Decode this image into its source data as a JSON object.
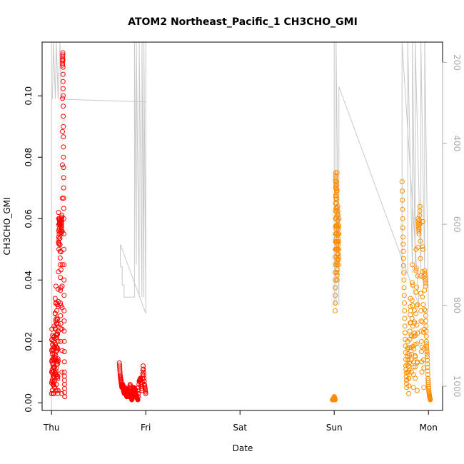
{
  "chart_data": {
    "type": "scatter",
    "title": "ATOM2 Northeast_Pacific_1 CH3CHO_GMI",
    "xlabel": "Date",
    "ylabel": "CH3CHO_GMI",
    "x_ticks": [
      "Thu",
      "Fri",
      "Sat",
      "Sun",
      "Mon"
    ],
    "y_ticks": [
      "0.00",
      "0.02",
      "0.04",
      "0.06",
      "0.08",
      "0.10"
    ],
    "y_range": [
      -0.0025,
      0.1175
    ],
    "y2_ticks": [
      "200",
      "400",
      "600",
      "800",
      "1000"
    ],
    "y2_range": [
      1060,
      150
    ],
    "y2_reversed": true,
    "x_range_days": [
      -0.1,
      4.15
    ],
    "series_colors": {
      "red_points": "#ff0000",
      "orange_points": "#ff8c00",
      "pressure_line": "#c8c8c8"
    },
    "red_segments": [
      {
        "x0": 0.0,
        "x1": 0.035,
        "values": [
          0.003,
          0.024,
          0.004,
          0.022,
          0.003,
          0.02,
          0.003,
          0.025,
          0.005,
          0.018
        ]
      },
      {
        "x0": 0.035,
        "x1": 0.07,
        "values": [
          0.005,
          0.034,
          0.004,
          0.038,
          0.006,
          0.03,
          0.004,
          0.032,
          0.003,
          0.037
        ]
      },
      {
        "x0": 0.07,
        "x1": 0.11,
        "values": [
          0.004,
          0.062,
          0.05,
          0.06,
          0.058,
          0.045,
          0.02,
          0.055,
          0.058,
          0.061
        ]
      },
      {
        "x0": 0.11,
        "x1": 0.14,
        "values": [
          0.003,
          0.045,
          0.11,
          0.114,
          0.1,
          0.08,
          0.06,
          0.03,
          0.01,
          0.002
        ]
      },
      {
        "x0": 0.72,
        "x1": 0.79,
        "values": [
          0.013,
          0.009,
          0.007,
          0.005,
          0.006,
          0.004,
          0.003,
          0.005,
          0.003
        ]
      },
      {
        "x0": 0.79,
        "x1": 0.86,
        "values": [
          0.003,
          0.002,
          0.004,
          0.002,
          0.003,
          0.006,
          0.003,
          0.001,
          0.002
        ]
      },
      {
        "x0": 0.86,
        "x1": 1.0,
        "values": [
          0.002,
          0.005,
          0.004,
          0.002,
          0.001,
          0.007,
          0.008,
          0.004,
          0.012,
          0.006,
          0.003
        ]
      }
    ],
    "orange_segments": [
      {
        "x0": 2.98,
        "x1": 3.01,
        "values": [
          0.001,
          0.001,
          0.002,
          0.001
        ]
      },
      {
        "x0": 3.01,
        "x1": 3.03,
        "values": [
          0.03,
          0.045,
          0.06,
          0.075,
          0.07,
          0.05,
          0.065,
          0.072,
          0.055,
          0.04,
          0.075
        ]
      },
      {
        "x0": 3.03,
        "x1": 3.05,
        "values": [
          0.04,
          0.05,
          0.064,
          0.055,
          0.045,
          0.06
        ]
      },
      {
        "x0": 3.72,
        "x1": 3.79,
        "values": [
          0.072,
          0.054,
          0.04,
          0.025,
          0.012,
          0.005,
          0.02,
          0.008
        ]
      },
      {
        "x0": 3.79,
        "x1": 3.88,
        "values": [
          0.003,
          0.018,
          0.034,
          0.01,
          0.045,
          0.005,
          0.03,
          0.008,
          0.05,
          0.013
        ]
      },
      {
        "x0": 3.88,
        "x1": 3.97,
        "values": [
          0.004,
          0.06,
          0.055,
          0.064,
          0.03,
          0.01,
          0.059,
          0.005,
          0.043,
          0.038
        ]
      },
      {
        "x0": 3.97,
        "x1": 4.02,
        "values": [
          0.03,
          0.02,
          0.015,
          0.008,
          0.004,
          0.002,
          0.001
        ]
      }
    ],
    "pressure_line": {
      "x": [
        0.0,
        0.0,
        0.0,
        0.01,
        0.02,
        0.04,
        0.05,
        0.07,
        0.09,
        0.1,
        0.11,
        0.12,
        1.0,
        1.0,
        1.0,
        0.73,
        0.73,
        0.75,
        0.75,
        0.77,
        0.77,
        0.81,
        0.81,
        0.88,
        0.88,
        0.9,
        0.9,
        0.93,
        0.93,
        0.96,
        0.96,
        0.98,
        0.98,
        1.0,
        1.0,
        3.0,
        3.0,
        3.02,
        3.02,
        3.05,
        3.05,
        3.9,
        3.9,
        3.72,
        3.72,
        3.78,
        3.78,
        3.83,
        3.83,
        3.86,
        3.86,
        3.92,
        3.92,
        3.96,
        3.96,
        4.0,
        4.0
      ],
      "p": [
        1060,
        150,
        290,
        290,
        150,
        290,
        150,
        290,
        150,
        290,
        290,
        291,
        298,
        150,
        820,
        650,
        705,
        705,
        750,
        750,
        780,
        780,
        780,
        780,
        150,
        700,
        150,
        780,
        150,
        780,
        150,
        780,
        150,
        800,
        150,
        150,
        800,
        800,
        150,
        800,
        260,
        800,
        800,
        150,
        720,
        720,
        150,
        720,
        150,
        720,
        150,
        720,
        150,
        720,
        150,
        800,
        810
      ]
    }
  }
}
